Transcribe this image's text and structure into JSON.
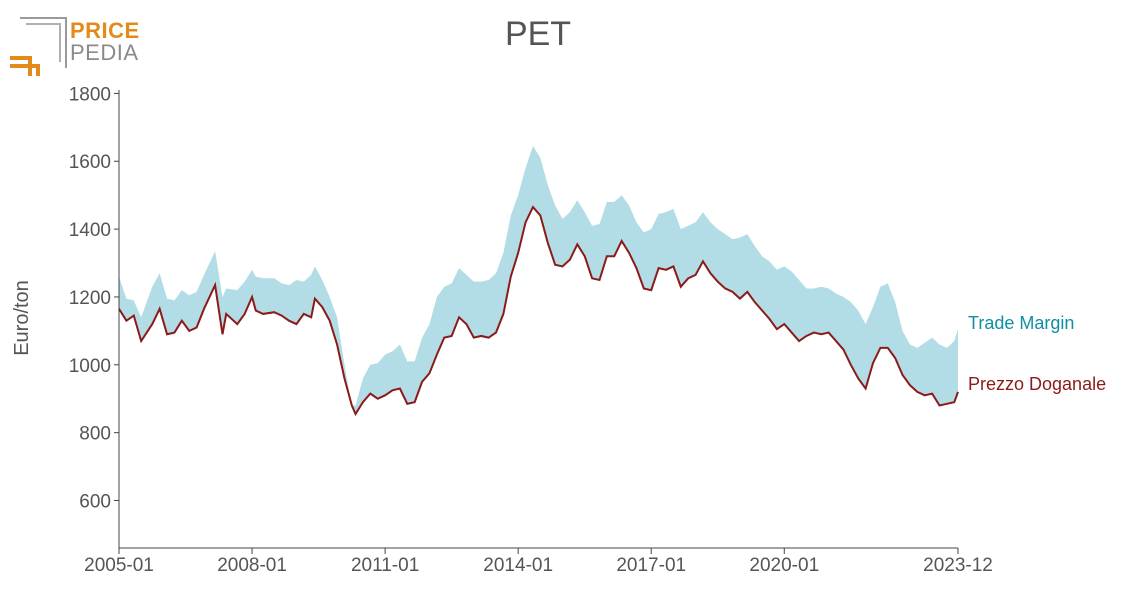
{
  "logo": {
    "line1": "PRICE",
    "line2": "PEDIA"
  },
  "chart_data": {
    "type": "area",
    "title": "PET",
    "xlabel": "",
    "ylabel": "Euro/ton",
    "x_range": [
      "2005-01",
      "2023-12"
    ],
    "ylim": [
      460,
      1810
    ],
    "y_ticks": [
      600,
      800,
      1000,
      1200,
      1400,
      1600,
      1800
    ],
    "x_ticks": [
      "2005-01",
      "2008-01",
      "2011-01",
      "2014-01",
      "2017-01",
      "2020-01",
      "2023-12"
    ],
    "grid": false,
    "legend": "inline-right",
    "colors": {
      "margin_fill": "#b2dde6",
      "price_line": "#8b1a1a",
      "margin_label": "#0e8fa3",
      "price_label": "#8b1a1a"
    },
    "series": [
      {
        "name": "Prezzo Doganale",
        "role": "lower-line",
        "points": [
          [
            "2005-01",
            1165
          ],
          [
            "2005-03",
            1130
          ],
          [
            "2005-05",
            1145
          ],
          [
            "2005-07",
            1070
          ],
          [
            "2005-10",
            1120
          ],
          [
            "2005-12",
            1165
          ],
          [
            "2006-02",
            1090
          ],
          [
            "2006-04",
            1095
          ],
          [
            "2006-06",
            1130
          ],
          [
            "2006-08",
            1100
          ],
          [
            "2006-10",
            1110
          ],
          [
            "2006-12",
            1165
          ],
          [
            "2007-03",
            1235
          ],
          [
            "2007-05",
            1090
          ],
          [
            "2007-06",
            1150
          ],
          [
            "2007-09",
            1120
          ],
          [
            "2007-11",
            1150
          ],
          [
            "2008-01",
            1200
          ],
          [
            "2008-02",
            1160
          ],
          [
            "2008-04",
            1150
          ],
          [
            "2008-07",
            1155
          ],
          [
            "2008-09",
            1145
          ],
          [
            "2008-11",
            1130
          ],
          [
            "2009-01",
            1120
          ],
          [
            "2009-03",
            1150
          ],
          [
            "2009-05",
            1140
          ],
          [
            "2009-06",
            1195
          ],
          [
            "2009-08",
            1170
          ],
          [
            "2009-10",
            1130
          ],
          [
            "2009-12",
            1060
          ],
          [
            "2010-02",
            960
          ],
          [
            "2010-04",
            880
          ],
          [
            "2010-05",
            855
          ],
          [
            "2010-07",
            890
          ],
          [
            "2010-09",
            915
          ],
          [
            "2010-11",
            900
          ],
          [
            "2011-01",
            910
          ],
          [
            "2011-03",
            925
          ],
          [
            "2011-05",
            930
          ],
          [
            "2011-07",
            885
          ],
          [
            "2011-09",
            890
          ],
          [
            "2011-11",
            950
          ],
          [
            "2012-01",
            975
          ],
          [
            "2012-03",
            1030
          ],
          [
            "2012-05",
            1080
          ],
          [
            "2012-07",
            1085
          ],
          [
            "2012-09",
            1140
          ],
          [
            "2012-11",
            1120
          ],
          [
            "2013-01",
            1080
          ],
          [
            "2013-03",
            1085
          ],
          [
            "2013-05",
            1080
          ],
          [
            "2013-07",
            1095
          ],
          [
            "2013-09",
            1150
          ],
          [
            "2013-11",
            1260
          ],
          [
            "2014-01",
            1330
          ],
          [
            "2014-03",
            1420
          ],
          [
            "2014-05",
            1465
          ],
          [
            "2014-07",
            1440
          ],
          [
            "2014-09",
            1360
          ],
          [
            "2014-11",
            1295
          ],
          [
            "2015-01",
            1290
          ],
          [
            "2015-03",
            1310
          ],
          [
            "2015-05",
            1355
          ],
          [
            "2015-07",
            1320
          ],
          [
            "2015-09",
            1255
          ],
          [
            "2015-11",
            1250
          ],
          [
            "2016-01",
            1320
          ],
          [
            "2016-03",
            1320
          ],
          [
            "2016-05",
            1365
          ],
          [
            "2016-07",
            1330
          ],
          [
            "2016-09",
            1285
          ],
          [
            "2016-11",
            1225
          ],
          [
            "2017-01",
            1220
          ],
          [
            "2017-03",
            1285
          ],
          [
            "2017-05",
            1280
          ],
          [
            "2017-07",
            1290
          ],
          [
            "2017-09",
            1230
          ],
          [
            "2017-11",
            1255
          ],
          [
            "2018-01",
            1265
          ],
          [
            "2018-03",
            1305
          ],
          [
            "2018-05",
            1270
          ],
          [
            "2018-07",
            1245
          ],
          [
            "2018-09",
            1225
          ],
          [
            "2018-11",
            1215
          ],
          [
            "2019-01",
            1195
          ],
          [
            "2019-03",
            1215
          ],
          [
            "2019-05",
            1185
          ],
          [
            "2019-07",
            1160
          ],
          [
            "2019-09",
            1135
          ],
          [
            "2019-11",
            1105
          ],
          [
            "2020-01",
            1120
          ],
          [
            "2020-03",
            1095
          ],
          [
            "2020-05",
            1070
          ],
          [
            "2020-07",
            1085
          ],
          [
            "2020-09",
            1095
          ],
          [
            "2020-11",
            1090
          ],
          [
            "2021-01",
            1095
          ],
          [
            "2021-03",
            1070
          ],
          [
            "2021-05",
            1045
          ],
          [
            "2021-07",
            1000
          ],
          [
            "2021-09",
            960
          ],
          [
            "2021-11",
            930
          ],
          [
            "2022-01",
            1005
          ],
          [
            "2022-03",
            1050
          ],
          [
            "2022-05",
            1050
          ],
          [
            "2022-07",
            1020
          ],
          [
            "2022-09",
            970
          ],
          [
            "2022-11",
            940
          ],
          [
            "2023-01",
            920
          ],
          [
            "2023-03",
            910
          ],
          [
            "2023-05",
            915
          ],
          [
            "2023-07",
            880
          ],
          [
            "2023-09",
            885
          ],
          [
            "2023-11",
            890
          ],
          [
            "2024-01",
            920
          ]
        ]
      },
      {
        "name": "Trade Margin",
        "role": "upper-band",
        "points": [
          [
            "2005-01",
            1260
          ],
          [
            "2005-03",
            1195
          ],
          [
            "2005-05",
            1190
          ],
          [
            "2005-07",
            1140
          ],
          [
            "2005-10",
            1230
          ],
          [
            "2005-12",
            1270
          ],
          [
            "2006-02",
            1195
          ],
          [
            "2006-04",
            1190
          ],
          [
            "2006-06",
            1220
          ],
          [
            "2006-08",
            1205
          ],
          [
            "2006-10",
            1215
          ],
          [
            "2006-12",
            1265
          ],
          [
            "2007-03",
            1335
          ],
          [
            "2007-05",
            1200
          ],
          [
            "2007-06",
            1225
          ],
          [
            "2007-09",
            1220
          ],
          [
            "2007-11",
            1245
          ],
          [
            "2008-01",
            1280
          ],
          [
            "2008-02",
            1260
          ],
          [
            "2008-04",
            1255
          ],
          [
            "2008-07",
            1255
          ],
          [
            "2008-09",
            1240
          ],
          [
            "2008-11",
            1235
          ],
          [
            "2009-01",
            1250
          ],
          [
            "2009-03",
            1245
          ],
          [
            "2009-05",
            1265
          ],
          [
            "2009-06",
            1290
          ],
          [
            "2009-08",
            1250
          ],
          [
            "2009-10",
            1200
          ],
          [
            "2009-12",
            1140
          ],
          [
            "2010-02",
            1000
          ],
          [
            "2010-04",
            880
          ],
          [
            "2010-05",
            880
          ],
          [
            "2010-07",
            960
          ],
          [
            "2010-09",
            1000
          ],
          [
            "2010-11",
            1005
          ],
          [
            "2011-01",
            1030
          ],
          [
            "2011-03",
            1040
          ],
          [
            "2011-05",
            1060
          ],
          [
            "2011-07",
            1010
          ],
          [
            "2011-09",
            1010
          ],
          [
            "2011-11",
            1080
          ],
          [
            "2012-01",
            1120
          ],
          [
            "2012-03",
            1200
          ],
          [
            "2012-05",
            1230
          ],
          [
            "2012-07",
            1240
          ],
          [
            "2012-09",
            1285
          ],
          [
            "2012-11",
            1265
          ],
          [
            "2013-01",
            1245
          ],
          [
            "2013-03",
            1245
          ],
          [
            "2013-05",
            1250
          ],
          [
            "2013-07",
            1270
          ],
          [
            "2013-09",
            1330
          ],
          [
            "2013-11",
            1440
          ],
          [
            "2014-01",
            1500
          ],
          [
            "2014-03",
            1580
          ],
          [
            "2014-05",
            1645
          ],
          [
            "2014-07",
            1610
          ],
          [
            "2014-09",
            1530
          ],
          [
            "2014-11",
            1470
          ],
          [
            "2015-01",
            1430
          ],
          [
            "2015-03",
            1450
          ],
          [
            "2015-05",
            1485
          ],
          [
            "2015-07",
            1450
          ],
          [
            "2015-09",
            1410
          ],
          [
            "2015-11",
            1415
          ],
          [
            "2016-01",
            1480
          ],
          [
            "2016-03",
            1480
          ],
          [
            "2016-05",
            1500
          ],
          [
            "2016-07",
            1470
          ],
          [
            "2016-09",
            1420
          ],
          [
            "2016-11",
            1390
          ],
          [
            "2017-01",
            1400
          ],
          [
            "2017-03",
            1445
          ],
          [
            "2017-05",
            1450
          ],
          [
            "2017-07",
            1460
          ],
          [
            "2017-09",
            1400
          ],
          [
            "2017-11",
            1410
          ],
          [
            "2018-01",
            1420
          ],
          [
            "2018-03",
            1450
          ],
          [
            "2018-05",
            1420
          ],
          [
            "2018-07",
            1400
          ],
          [
            "2018-09",
            1385
          ],
          [
            "2018-11",
            1370
          ],
          [
            "2019-01",
            1375
          ],
          [
            "2019-03",
            1385
          ],
          [
            "2019-05",
            1350
          ],
          [
            "2019-07",
            1320
          ],
          [
            "2019-09",
            1305
          ],
          [
            "2019-11",
            1280
          ],
          [
            "2020-01",
            1290
          ],
          [
            "2020-03",
            1275
          ],
          [
            "2020-05",
            1250
          ],
          [
            "2020-07",
            1225
          ],
          [
            "2020-09",
            1225
          ],
          [
            "2020-11",
            1230
          ],
          [
            "2021-01",
            1225
          ],
          [
            "2021-03",
            1210
          ],
          [
            "2021-05",
            1200
          ],
          [
            "2021-07",
            1185
          ],
          [
            "2021-09",
            1160
          ],
          [
            "2021-11",
            1120
          ],
          [
            "2022-01",
            1170
          ],
          [
            "2022-03",
            1230
          ],
          [
            "2022-05",
            1240
          ],
          [
            "2022-07",
            1185
          ],
          [
            "2022-09",
            1100
          ],
          [
            "2022-11",
            1060
          ],
          [
            "2023-01",
            1050
          ],
          [
            "2023-03",
            1065
          ],
          [
            "2023-05",
            1080
          ],
          [
            "2023-07",
            1060
          ],
          [
            "2023-09",
            1050
          ],
          [
            "2023-11",
            1070
          ],
          [
            "2024-01",
            1105
          ]
        ]
      }
    ]
  }
}
